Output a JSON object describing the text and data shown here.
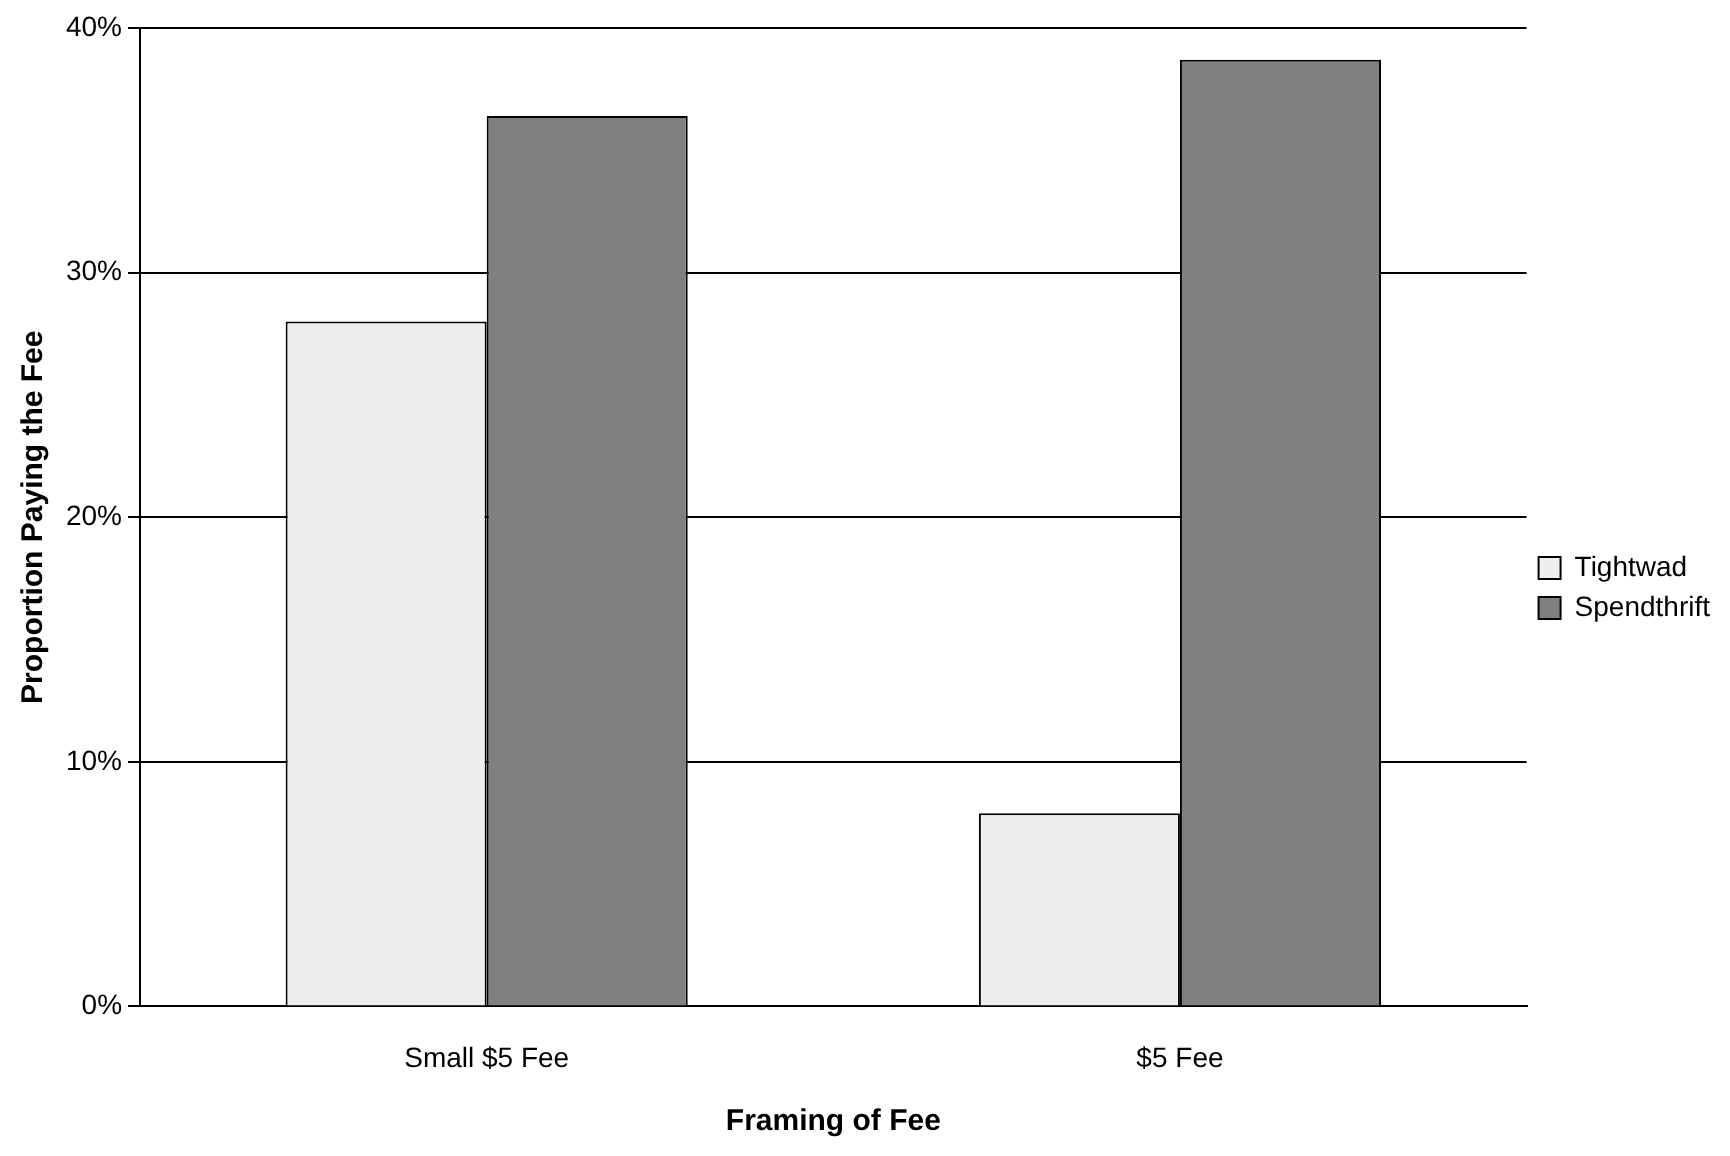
{
  "chart_data": {
    "type": "bar",
    "xlabel": "Framing of Fee",
    "ylabel": "Proportion Paying the Fee",
    "categories": [
      "Small $5 Fee",
      "$5 Fee"
    ],
    "series": [
      {
        "name": "Tightwad",
        "color": "#eeeeee",
        "values": [
          28,
          7.9
        ]
      },
      {
        "name": "Spendthrift",
        "color": "#808080",
        "values": [
          36.4,
          38.7
        ]
      }
    ],
    "ylim": [
      0,
      40
    ],
    "yticks": [
      {
        "value": 0,
        "label": "0%"
      },
      {
        "value": 10,
        "label": "10%"
      },
      {
        "value": 20,
        "label": "20%"
      },
      {
        "value": 30,
        "label": "30%"
      },
      {
        "value": 40,
        "label": "40%"
      }
    ],
    "grid": "y",
    "legend": "right"
  }
}
